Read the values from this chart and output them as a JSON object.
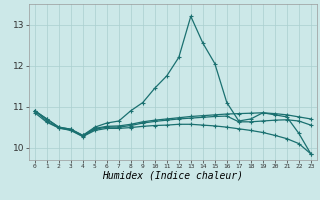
{
  "xlabel": "Humidex (Indice chaleur)",
  "background_color": "#cce8e8",
  "line_color": "#1a7070",
  "grid_color": "#aacfcf",
  "x_values": [
    0,
    1,
    2,
    3,
    4,
    5,
    6,
    7,
    8,
    9,
    10,
    11,
    12,
    13,
    14,
    15,
    16,
    17,
    18,
    19,
    20,
    21,
    22,
    23
  ],
  "series_peak": [
    10.9,
    10.7,
    10.5,
    10.45,
    10.3,
    10.5,
    10.6,
    10.65,
    10.9,
    11.1,
    11.45,
    11.75,
    12.2,
    13.2,
    12.55,
    12.05,
    11.1,
    10.65,
    10.7,
    10.85,
    10.8,
    10.75,
    10.35,
    9.85
  ],
  "series_flat1": [
    10.9,
    10.7,
    10.5,
    10.45,
    10.3,
    10.47,
    10.52,
    10.53,
    10.57,
    10.63,
    10.67,
    10.7,
    10.73,
    10.76,
    10.78,
    10.8,
    10.82,
    10.83,
    10.84,
    10.85,
    10.83,
    10.8,
    10.75,
    10.7
  ],
  "series_flat2": [
    10.9,
    10.65,
    10.48,
    10.43,
    10.28,
    10.45,
    10.5,
    10.5,
    10.54,
    10.6,
    10.64,
    10.67,
    10.7,
    10.72,
    10.74,
    10.76,
    10.77,
    10.63,
    10.63,
    10.65,
    10.67,
    10.68,
    10.65,
    10.55
  ],
  "series_decline": [
    10.85,
    10.62,
    10.48,
    10.42,
    10.27,
    10.42,
    10.47,
    10.47,
    10.49,
    10.52,
    10.54,
    10.55,
    10.57,
    10.57,
    10.55,
    10.53,
    10.5,
    10.46,
    10.42,
    10.37,
    10.3,
    10.22,
    10.1,
    9.85
  ],
  "ylim": [
    9.7,
    13.5
  ],
  "yticks": [
    10,
    11,
    12,
    13
  ],
  "xticks": [
    0,
    1,
    2,
    3,
    4,
    5,
    6,
    7,
    8,
    9,
    10,
    11,
    12,
    13,
    14,
    15,
    16,
    17,
    18,
    19,
    20,
    21,
    22,
    23
  ]
}
